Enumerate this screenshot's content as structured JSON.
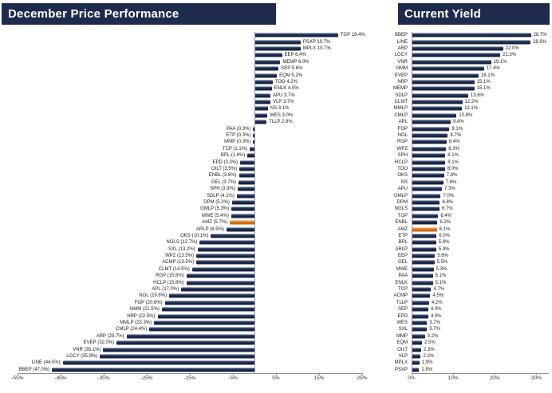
{
  "colors": {
    "navy": "#1F2B4D",
    "orange": "#E4761F",
    "axis": "#8D94A0"
  },
  "chart_data": [
    {
      "type": "bar",
      "orientation": "horizontal",
      "title": "December Price Performance",
      "xlabel": "",
      "ylabel": "",
      "xlim": [
        -55,
        25
      ],
      "grid": false,
      "legend": "none",
      "value_format": "positive as 'TKR 0.0%', negative as 'TKR (0.0%)'",
      "highlight_category": "AMZ",
      "xticks": [
        {
          "v": -55,
          "label": "-55%"
        },
        {
          "v": -45,
          "label": "-45%"
        },
        {
          "v": -35,
          "label": "-35%"
        },
        {
          "v": -25,
          "label": "-25%"
        },
        {
          "v": -15,
          "label": "-15%"
        },
        {
          "v": -5,
          "label": "-5%"
        },
        {
          "v": 5,
          "label": "5%"
        },
        {
          "v": 15,
          "label": "15%"
        },
        {
          "v": 25,
          "label": "25%"
        }
      ],
      "categories": [
        "TGP",
        "PSXP",
        "MPLX",
        "EEP",
        "MEMP",
        "SEP",
        "EQM",
        "TOO",
        "ENLK",
        "APU",
        "VLP",
        "NS",
        "WES",
        "TLLP",
        "PAA",
        "ETP",
        "MMP",
        "TCP",
        "BPL",
        "EPD",
        "OILT",
        "ENBL",
        "GEL",
        "SPH",
        "SDLP",
        "DPM",
        "GMLP",
        "MWE",
        "AMZ",
        "ARLP",
        "OKS",
        "NGLS",
        "SXL",
        "WPZ",
        "ACMP",
        "CLMT",
        "RGP",
        "HCLP",
        "APL",
        "NGL",
        "FGP",
        "NMM",
        "NRP",
        "MMLP",
        "CMLP",
        "ARP",
        "EVEP",
        "VNR",
        "LGCY",
        "LINE",
        "BBEP"
      ],
      "values": [
        19.4,
        10.7,
        10.7,
        6.4,
        6.0,
        5.6,
        5.2,
        4.2,
        4.0,
        3.7,
        3.7,
        3.1,
        3.0,
        2.8,
        -0.3,
        -0.3,
        -0.3,
        -1.1,
        -1.6,
        -3.3,
        -3.5,
        -3.6,
        -3.7,
        -3.9,
        -4.1,
        -5.2,
        -5.3,
        -5.4,
        -5.7,
        -6.5,
        -10.1,
        -12.7,
        -13.2,
        -13.5,
        -13.5,
        -14.5,
        -15.8,
        -15.8,
        -17.0,
        -19.8,
        -20.8,
        -21.5,
        -22.5,
        -23.3,
        -24.4,
        -29.7,
        -32.0,
        -35.1,
        -35.9,
        -44.5,
        -47.0
      ]
    },
    {
      "type": "bar",
      "orientation": "horizontal",
      "title": "Current Yield",
      "xlabel": "",
      "ylabel": "",
      "xlim": [
        0,
        30
      ],
      "grid": false,
      "legend": "none",
      "value_format": "'0.0%' at bar end",
      "highlight_category": "AMZ",
      "xticks": [
        {
          "v": 0,
          "label": "0%"
        },
        {
          "v": 10,
          "label": "10%"
        },
        {
          "v": 20,
          "label": "20%"
        },
        {
          "v": 30,
          "label": "30%"
        }
      ],
      "categories": [
        "BBEP",
        "LINE",
        "ARP",
        "LGCY",
        "VNR",
        "NMM",
        "EVEP",
        "NRP",
        "MEMP",
        "SDLP",
        "CLMT",
        "MMLP",
        "CMLP",
        "APL",
        "FGP",
        "NGL",
        "RGP",
        "WPZ",
        "SPH",
        "HCLP",
        "TOO",
        "OKS",
        "NS",
        "APU",
        "GMLP",
        "DPM",
        "NGLS",
        "TGP",
        "ENBL",
        "AMZ",
        "ETP",
        "BPL",
        "ARLP",
        "EEP",
        "GEL",
        "MWE",
        "PAA",
        "ENLK",
        "TCP",
        "ACMP",
        "TLLP",
        "SEP",
        "EPD",
        "WES",
        "SXL",
        "MMP",
        "EQM",
        "OILT",
        "VLP",
        "MPLX",
        "PSXP"
      ],
      "values": [
        28.7,
        28.6,
        22.0,
        21.3,
        19.1,
        17.4,
        16.1,
        15.1,
        15.1,
        13.6,
        12.2,
        12.1,
        10.8,
        9.4,
        9.1,
        8.7,
        8.4,
        8.3,
        8.1,
        8.1,
        8.0,
        7.8,
        7.6,
        7.3,
        7.0,
        6.8,
        6.7,
        6.4,
        6.2,
        6.1,
        6.0,
        5.9,
        5.9,
        5.6,
        5.5,
        5.3,
        5.1,
        5.1,
        4.7,
        4.5,
        4.2,
        4.0,
        4.0,
        3.7,
        3.7,
        3.2,
        2.5,
        2.3,
        2.2,
        1.9,
        1.8
      ]
    }
  ]
}
